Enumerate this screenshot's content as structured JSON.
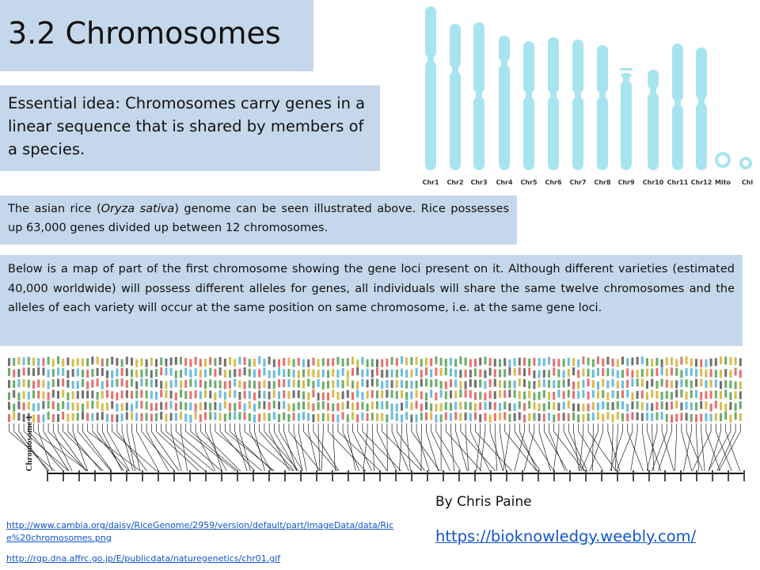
{
  "title": "3.2 Chromosomes",
  "essential_idea": "Essential idea: Chromosomes carry genes in a linear sequence that is shared by members of a species.",
  "rice_text": {
    "before": "The asian rice (",
    "italic": "Oryza sativa",
    "after": ") genome can be seen illustrated above. Rice possesses up 63,000 genes divided up between 12 chromosomes."
  },
  "map_text": "Below is a map of part of the first chromosome showing the gene loci present on it. Although different varieties (estimated 40,000 worldwide) will possess different alleles for genes, all individuals will share the same twelve chromosomes and the alleles of each variety will occur at the same position on same chromosome, i.e. at the same gene loci.",
  "chromosome_labels": [
    "Chr1",
    "Chr2",
    "Chr3",
    "Chr4",
    "Chr5",
    "Chr6",
    "Chr7",
    "Chr8",
    "Chr9",
    "Chr10",
    "Chr11",
    "Chr12",
    "Mito",
    "Chl"
  ],
  "map_label": "Chromosome 1",
  "author": "By Chris Paine",
  "website": "https://bioknowledgy.weebly.com/",
  "sources": [
    "http://www.cambia.org/daisy/RiceGenome/2959/version/default/part/ImageData/data/Rice%20chromosomes.png",
    "http://rgp.dna.affrc.go.jp/E/publicdata/naturegenetics/chr01.gif"
  ]
}
